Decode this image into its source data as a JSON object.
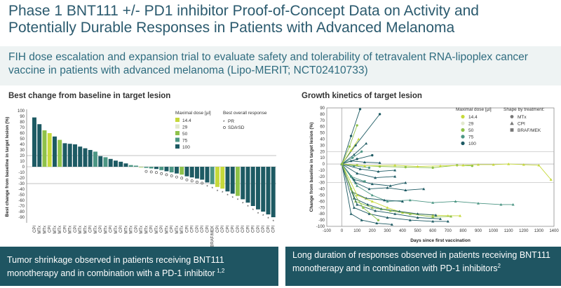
{
  "header": {
    "title_line1": "Phase 1 BNT111 +/- PD1 inhibitor Proof-of-Concept Data on Activity and",
    "title_line2": "Potentially Durable Responses in Patients with Advanced Melanoma",
    "subtitle": "FIH dose escalation and expansion trial to evaluate safety and tolerability of tetravalent RNA-lipoplex cancer vaccine in patients with advanced melanoma (Lipo-MERIT; NCT02410733)"
  },
  "colors": {
    "title": "#2b5a6e",
    "caption_bg": "#1f5562",
    "dose_14_4": "#c6d93b",
    "dose_29": "#e3e9cf",
    "dose_50": "#8fc24a",
    "dose_75": "#4c9684",
    "dose_100": "#1d5a63"
  },
  "captions": {
    "left": "Tumor shrinkage observed in patients receiving BNT111 monotherapy and in combination with a PD-1 inhibitor",
    "left_sup": "1,2",
    "right": "Long duration of responses observed in patients receiving BNT111 monotherapy and in combination with PD-1 inhibitors",
    "right_sup": "2"
  },
  "chart_data": [
    {
      "type": "bar",
      "title": "Best change from baseline in target lesion",
      "xlabel": "",
      "ylabel": "Best change from baseline in target lesion (%)",
      "ylim": [
        -100,
        100
      ],
      "yticks": [
        -90,
        -80,
        -70,
        -60,
        -50,
        -40,
        -30,
        -20,
        -10,
        0,
        10,
        20,
        30,
        40,
        50,
        60,
        70,
        80,
        90,
        100
      ],
      "reference_lines": [
        20,
        -30
      ],
      "legend_dose_title": "Maximal dose [µl]",
      "legend_dose": [
        "14.4",
        "29",
        "50",
        "75",
        "100"
      ],
      "legend_response_title": "Best overall response",
      "legend_response": [
        "PR",
        "SD/irSD"
      ],
      "response_symbols": {
        "PR": "*",
        "SD/irSD": "o"
      },
      "categories": [
        "CPI",
        "MTx",
        "MTx",
        "CPI",
        "MTx",
        "MTx",
        "CPI",
        "MTx",
        "CPI",
        "MTx",
        "MTx",
        "CPI",
        "MTx",
        "CPI",
        "MTx",
        "CPI",
        "MTx",
        "CPI",
        "MTx",
        "MTx",
        "CPI",
        "MTx",
        "MTx",
        "CPI",
        "MTx",
        "CPI",
        "MTx",
        "CPI",
        "MTx",
        "MTx",
        "CPI",
        "CPI",
        "CPI",
        "CPI",
        "CPI",
        "BRAF/MEK",
        "CPI",
        "CPI",
        "CPI",
        "CPI",
        "CPI",
        "CPI",
        "CPI",
        "CPI",
        "CPI",
        "CPI",
        "CPI",
        "CPI"
      ],
      "values": [
        88,
        76,
        65,
        60,
        54,
        48,
        42,
        41,
        40,
        36,
        33,
        30,
        27,
        19,
        17,
        14,
        11,
        9,
        6,
        3,
        2,
        0,
        -2,
        -3,
        -4,
        -6,
        -8,
        -10,
        -12,
        -14,
        -17,
        -19,
        -21,
        -23,
        -28,
        -31,
        -36,
        -39,
        -44,
        -48,
        -52,
        -58,
        -64,
        -70,
        -76,
        -80,
        -85,
        -90
      ],
      "dose": [
        "100",
        "100",
        "50",
        "14.4",
        "100",
        "50",
        "100",
        "100",
        "100",
        "100",
        "100",
        "100",
        "75",
        "100",
        "75",
        "100",
        "100",
        "100",
        "100",
        "75",
        "75",
        "50",
        "75",
        "75",
        "100",
        "75",
        "100",
        "75",
        "100",
        "50",
        "100",
        "100",
        "100",
        "100",
        "100",
        "75",
        "14.4",
        "14.4",
        "100",
        "100",
        "50",
        "100",
        "100",
        "100",
        "100",
        "100",
        "100",
        "100"
      ],
      "response": [
        "",
        "",
        "",
        "",
        "",
        "",
        "",
        "",
        "",
        "",
        "",
        "",
        "",
        "",
        "",
        "",
        "",
        "",
        "",
        "",
        "",
        "",
        "SD/irSD",
        "SD/irSD",
        "SD/irSD",
        "SD/irSD",
        "SD/irSD",
        "SD/irSD",
        "SD/irSD",
        "SD/irSD",
        "SD/irSD",
        "SD/irSD",
        "SD/irSD",
        "SD/irSD",
        "PR",
        "PR",
        "PR",
        "PR",
        "PR",
        "PR",
        "PR",
        "PR",
        "PR",
        "PR",
        "PR",
        "PR",
        "PR",
        "PR"
      ]
    },
    {
      "type": "line",
      "title": "Growth kinetics of target lesion",
      "xlabel": "Days since first vaccination",
      "ylabel": "Change from baseline in target lesion (%)",
      "xlim": [
        -100,
        1400
      ],
      "ylim": [
        -100,
        90
      ],
      "xticks": [
        -100,
        0,
        100,
        200,
        300,
        400,
        500,
        600,
        700,
        800,
        900,
        1000,
        1100,
        1200,
        1300,
        1400
      ],
      "yticks": [
        -100,
        -90,
        -80,
        -70,
        -60,
        -50,
        -40,
        -30,
        -20,
        -10,
        0,
        10,
        20,
        30,
        40,
        50,
        60,
        70,
        80,
        90
      ],
      "reference_lines": [
        20,
        -30
      ],
      "legend_dose_title": "Maximal dose [µl]",
      "legend_dose": [
        "14.4",
        "29",
        "50",
        "75",
        "100"
      ],
      "legend_shape_title": "Shape by treatment:",
      "legend_shape": [
        "MTx",
        "CPI",
        "BRAF/MEK"
      ],
      "series": [
        {
          "dose": "100",
          "treatment": "MTx",
          "x": [
            0,
            60,
            120
          ],
          "y": [
            0,
            45,
            88
          ]
        },
        {
          "dose": "100",
          "treatment": "MTx",
          "x": [
            0,
            90,
            250
          ],
          "y": [
            0,
            30,
            80
          ]
        },
        {
          "dose": "50",
          "treatment": "MTx",
          "x": [
            0,
            50,
            100
          ],
          "y": [
            0,
            28,
            62
          ]
        },
        {
          "dose": "14.4",
          "treatment": "CPI",
          "x": [
            0,
            60,
            110
          ],
          "y": [
            0,
            22,
            40
          ]
        },
        {
          "dose": "100",
          "treatment": "CPI",
          "x": [
            0,
            80,
            160
          ],
          "y": [
            0,
            15,
            33
          ]
        },
        {
          "dose": "75",
          "treatment": "MTx",
          "x": [
            0,
            70,
            130
          ],
          "y": [
            0,
            10,
            20
          ]
        },
        {
          "dose": "100",
          "treatment": "MTx",
          "x": [
            0,
            100,
            200
          ],
          "y": [
            0,
            8,
            14
          ]
        },
        {
          "dose": "100",
          "treatment": "CPI",
          "x": [
            0,
            60,
            150,
            250
          ],
          "y": [
            0,
            5,
            3,
            2
          ]
        },
        {
          "dose": "75",
          "treatment": "MTx",
          "x": [
            0,
            80,
            180
          ],
          "y": [
            0,
            -3,
            -6
          ]
        },
        {
          "dose": "100",
          "treatment": "CPI",
          "x": [
            0,
            120,
            240,
            350
          ],
          "y": [
            0,
            -8,
            -12,
            -10
          ]
        },
        {
          "dose": "50",
          "treatment": "MTx",
          "x": [
            0,
            100,
            250,
            420,
            600,
            760,
            860
          ],
          "y": [
            0,
            -2,
            -4,
            -5,
            -6,
            -2,
            -3
          ]
        },
        {
          "dose": "14.4",
          "treatment": "CPI",
          "x": [
            0,
            150,
            350,
            500,
            650,
            800,
            900,
            1000,
            1100,
            1200,
            1300,
            1380
          ],
          "y": [
            0,
            -3,
            -2,
            -4,
            -3,
            -2,
            -1,
            -1,
            0,
            -1,
            -2,
            -25
          ]
        },
        {
          "dose": "100",
          "treatment": "CPI",
          "x": [
            0,
            100,
            220,
            350
          ],
          "y": [
            0,
            -15,
            -22,
            -20
          ]
        },
        {
          "dose": "100",
          "treatment": "CPI",
          "x": [
            0,
            80,
            200,
            320,
            420
          ],
          "y": [
            0,
            -25,
            -32,
            -35,
            -30
          ]
        },
        {
          "dose": "100",
          "treatment": "CPI",
          "x": [
            0,
            90,
            180,
            300,
            420,
            540
          ],
          "y": [
            0,
            -30,
            -40,
            -38,
            -42,
            -40
          ]
        },
        {
          "dose": "75",
          "treatment": "CPI",
          "x": [
            0,
            100,
            200,
            300,
            450,
            600,
            750,
            900,
            1050,
            1130
          ],
          "y": [
            0,
            -35,
            -50,
            -60,
            -58,
            -62,
            -60,
            -63,
            -65,
            -65
          ]
        },
        {
          "dose": "100",
          "treatment": "CPI",
          "x": [
            0,
            70,
            160,
            280,
            400
          ],
          "y": [
            0,
            -45,
            -55,
            -58,
            -60
          ]
        },
        {
          "dose": "14.4",
          "treatment": "CPI",
          "x": [
            0,
            100,
            200,
            300,
            400,
            500,
            600,
            700,
            780
          ],
          "y": [
            0,
            -50,
            -60,
            -70,
            -78,
            -80,
            -82,
            -83,
            -83
          ]
        },
        {
          "dose": "100",
          "treatment": "CPI",
          "x": [
            0,
            80,
            170,
            260,
            380,
            500,
            620
          ],
          "y": [
            0,
            -55,
            -65,
            -72,
            -76,
            -80,
            -82
          ]
        },
        {
          "dose": "50",
          "treatment": "CPI",
          "x": [
            0,
            90,
            200,
            320,
            450,
            600,
            720
          ],
          "y": [
            0,
            -60,
            -70,
            -75,
            -80,
            -85,
            -84
          ]
        },
        {
          "dose": "100",
          "treatment": "CPI",
          "x": [
            0,
            100,
            220,
            350,
            500,
            650
          ],
          "y": [
            0,
            -65,
            -75,
            -80,
            -86,
            -88
          ]
        },
        {
          "dose": "100",
          "treatment": "CPI",
          "x": [
            0,
            80,
            180,
            300,
            450,
            600,
            700
          ],
          "y": [
            0,
            -70,
            -80,
            -86,
            -90,
            -92,
            -92
          ]
        },
        {
          "dose": "75",
          "treatment": "BRAF/MEK",
          "x": [
            0,
            60,
            150
          ],
          "y": [
            0,
            -20,
            -28
          ]
        },
        {
          "dose": "100",
          "treatment": "CPI",
          "x": [
            0,
            60,
            130,
            230,
            330
          ],
          "y": [
            0,
            -80,
            -90,
            -95,
            -97
          ]
        },
        {
          "dose": "50",
          "treatment": "MTx",
          "x": [
            0,
            60,
            140,
            240
          ],
          "y": [
            0,
            -40,
            -70,
            -90
          ]
        }
      ]
    }
  ]
}
